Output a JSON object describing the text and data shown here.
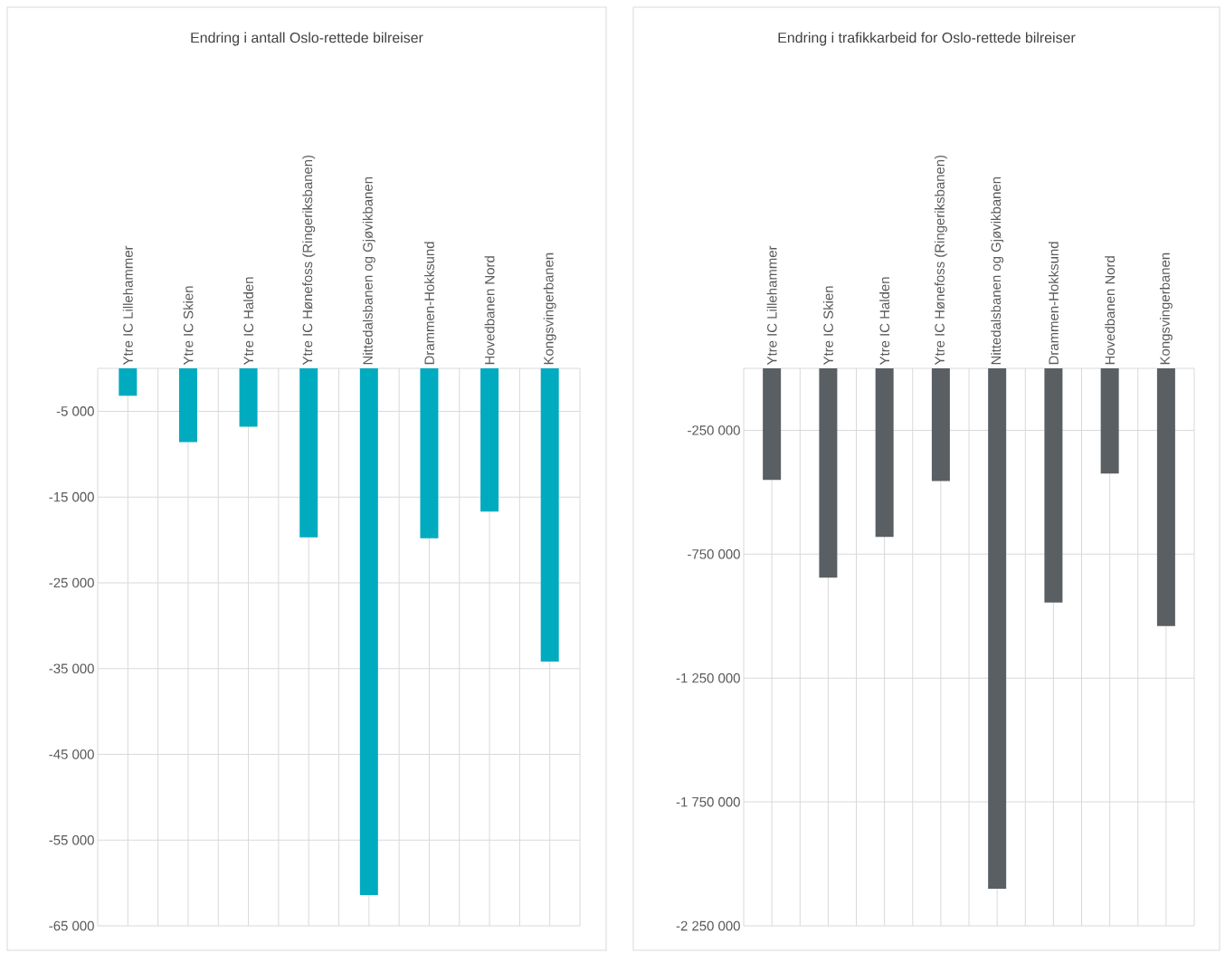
{
  "chart_data": [
    {
      "type": "bar",
      "title": "Endring i antall Oslo-rettede bilreiser",
      "categories": [
        "Ytre IC Lillehammer",
        "Ytre IC Skien",
        "Ytre IC Halden",
        "Ytre IC Hønefoss (Ringeriksbanen)",
        "Nittedalsbanen og  Gjøvikbanen",
        "Drammen-Hokksund",
        "Hovedbanen Nord",
        "Kongsvingerbanen"
      ],
      "values": [
        -3200,
        -8600,
        -6800,
        -19700,
        -61400,
        -19800,
        -16700,
        -34200
      ],
      "color": "#00abc0",
      "ylim": [
        -65000,
        0
      ],
      "yticks": [
        {
          "value": -5000,
          "label": "-5 000"
        },
        {
          "value": -15000,
          "label": "-15 000"
        },
        {
          "value": -25000,
          "label": "-25 000"
        },
        {
          "value": -35000,
          "label": "-35 000"
        },
        {
          "value": -45000,
          "label": "-45 000"
        },
        {
          "value": -55000,
          "label": "-55 000"
        },
        {
          "value": -65000,
          "label": "-65 000"
        }
      ],
      "grid": true
    },
    {
      "type": "bar",
      "title": "Endring i trafikkarbeid for  Oslo-rettede bilreiser",
      "categories": [
        "Ytre IC Lillehammer",
        "Ytre IC Skien",
        "Ytre IC Halden",
        "Ytre IC Hønefoss (Ringeriksbanen)",
        "Nittedalsbanen og  Gjøvikbanen",
        "Drammen-Hokksund",
        "Hovedbanen Nord",
        "Kongsvingerbanen"
      ],
      "values": [
        -450000,
        -845000,
        -680000,
        -455000,
        -2100000,
        -945000,
        -425000,
        -1040000
      ],
      "color": "#595f63",
      "ylim": [
        -2250000,
        0
      ],
      "yticks": [
        {
          "value": -250000,
          "label": "-250 000"
        },
        {
          "value": -750000,
          "label": "-750 000"
        },
        {
          "value": -1250000,
          "label": "-1 250 000"
        },
        {
          "value": -1750000,
          "label": "-1 750 000"
        },
        {
          "value": -2250000,
          "label": "-2 250 000"
        }
      ],
      "grid": true
    }
  ]
}
